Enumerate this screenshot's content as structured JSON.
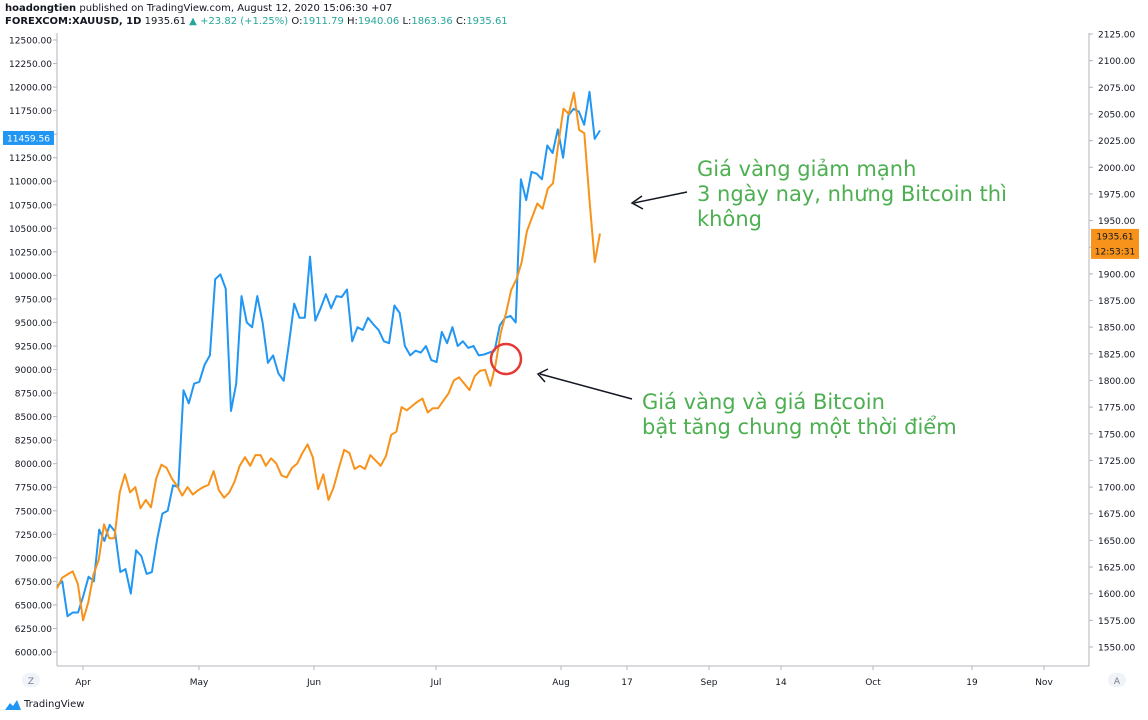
{
  "header": {
    "author": "hoadongtien",
    "published_text": "published on TradingView.com, August 12, 2020 15:06:30 +07",
    "symbol": "FOREXCOM:XAUUSD, 1D",
    "last": "1935.61",
    "change": "+23.82 (+1.25%)",
    "open_label": "O:",
    "open": "1911.79",
    "high_label": "H:",
    "high": "1940.06",
    "low_label": "L:",
    "low": "1863.36",
    "close_label": "C:",
    "close": "1935.61"
  },
  "chart_data": {
    "type": "line",
    "left_axis_ticks": [
      "12500.00",
      "12250.00",
      "12000.00",
      "11750.00",
      "11500.00",
      "11250.00",
      "11000.00",
      "10750.00",
      "10500.00",
      "10250.00",
      "10000.00",
      "9750.00",
      "9500.00",
      "9250.00",
      "9000.00",
      "8750.00",
      "8500.00",
      "8250.00",
      "8000.00",
      "7750.00",
      "7500.00",
      "7250.00",
      "7000.00",
      "6750.00",
      "6500.00",
      "6250.00",
      "6000.00"
    ],
    "right_axis_ticks": [
      "2125.00",
      "2100.00",
      "2075.00",
      "2050.00",
      "2025.00",
      "2000.00",
      "1975.00",
      "1950.00",
      "1925.00",
      "1900.00",
      "1875.00",
      "1850.00",
      "1825.00",
      "1800.00",
      "1775.00",
      "1750.00",
      "1725.00",
      "1700.00",
      "1675.00",
      "1650.00",
      "1625.00",
      "1600.00",
      "1575.00",
      "1550.00"
    ],
    "x_ticks": [
      "Apr",
      "May",
      "Jun",
      "Jul",
      "Aug",
      "17",
      "Sep",
      "14",
      "Oct",
      "19",
      "Nov"
    ],
    "left_ylim": [
      5800,
      12650
    ],
    "right_ylim": [
      1540,
      2127
    ],
    "series": [
      {
        "color": "#2196f3",
        "axis": "left",
        "values": [
          6700,
          6750,
          6380,
          6420,
          6420,
          6600,
          6800,
          6750,
          7300,
          7180,
          7350,
          7280,
          6850,
          6880,
          6620,
          7080,
          7020,
          6830,
          6850,
          7200,
          7470,
          7500,
          7770,
          7750,
          8780,
          8640,
          8850,
          8870,
          9050,
          9150,
          9960,
          10010,
          9860,
          8560,
          8850,
          9780,
          9500,
          9450,
          9780,
          9500,
          9070,
          9150,
          8960,
          8880,
          9280,
          9700,
          9550,
          9550,
          10200,
          9520,
          9650,
          9800,
          9650,
          9780,
          9770,
          9850,
          9300,
          9450,
          9420,
          9550,
          9480,
          9420,
          9300,
          9280,
          9680,
          9600,
          9250,
          9150,
          9200,
          9180,
          9250,
          9100,
          9080,
          9400,
          9280,
          9450,
          9250,
          9300,
          9230,
          9250,
          9150,
          9160,
          9180,
          9200,
          9470,
          9550,
          9570,
          9500,
          11020,
          10800,
          11100,
          11080,
          11020,
          11380,
          11300,
          11550,
          11250,
          11700,
          11770,
          11740,
          11600,
          11950,
          11450,
          11540
        ],
        "last_label": "11459.56"
      },
      {
        "color": "#f7931a",
        "axis": "right",
        "values": [
          1605,
          1615,
          1618,
          1621,
          1609,
          1575,
          1592,
          1618,
          1632,
          1665,
          1652,
          1652,
          1695,
          1712,
          1695,
          1700,
          1680,
          1688,
          1681,
          1708,
          1721,
          1718,
          1708,
          1701,
          1692,
          1700,
          1693,
          1697,
          1700,
          1702,
          1715,
          1697,
          1690,
          1695,
          1705,
          1720,
          1728,
          1720,
          1730,
          1730,
          1720,
          1727,
          1722,
          1711,
          1709,
          1718,
          1722,
          1732,
          1740,
          1728,
          1698,
          1712,
          1688,
          1700,
          1718,
          1735,
          1732,
          1717,
          1720,
          1717,
          1730,
          1725,
          1720,
          1729,
          1749,
          1752,
          1775,
          1772,
          1776,
          1780,
          1783,
          1770,
          1774,
          1774,
          1781,
          1788,
          1800,
          1803,
          1797,
          1791,
          1804,
          1809,
          1810,
          1795,
          1815,
          1845,
          1863,
          1885,
          1895,
          1911,
          1940,
          1953,
          1966,
          1961,
          1980,
          1985,
          2021,
          2055,
          2050,
          2070,
          2035,
          2032,
          1968,
          1911,
          1938
        ],
        "last_label": "1935.61",
        "time_label": "12:53:31"
      }
    ]
  },
  "annotations": {
    "top_line1": "Giá vàng giảm mạnh",
    "top_line2": "3 ngày nay, nhưng Bitcoin thì",
    "top_line3": "không",
    "bottom_line1": "Giá vàng và giá Bitcoin",
    "bottom_line2": "bật tăng chung một thời điểm",
    "text_color": "#4caf50"
  },
  "controls": {
    "left_btn": "Z",
    "right_btn": "A"
  },
  "footer": {
    "brand": "TradingView"
  }
}
